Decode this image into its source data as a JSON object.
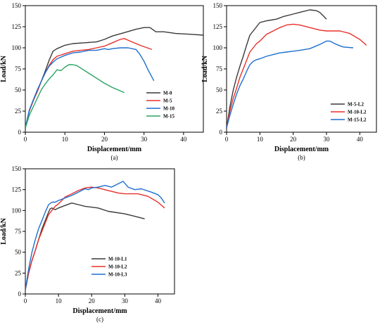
{
  "chart_data": [
    {
      "id": "a",
      "type": "line",
      "caption": "(a)",
      "xlabel": "Displacement/mm",
      "ylabel": "Load/kN",
      "xlim": [
        0,
        45
      ],
      "ylim": [
        0,
        150
      ],
      "xticks": [
        0,
        10,
        20,
        30,
        40
      ],
      "yticks": [
        0,
        25,
        50,
        75,
        100,
        125,
        150
      ],
      "legend_position": "bottom-right",
      "series": [
        {
          "name": "M-0",
          "color": "#3a3a3a",
          "x": [
            0,
            1,
            2,
            3,
            4,
            5,
            6,
            7,
            8,
            10,
            12,
            15,
            18,
            20,
            22,
            25,
            28,
            30,
            31.5,
            33,
            35,
            38,
            42,
            45
          ],
          "y": [
            5,
            25,
            38,
            48,
            60,
            72,
            85,
            96,
            99,
            103,
            105,
            106,
            107,
            110,
            114,
            118,
            122,
            124,
            124,
            119,
            119,
            117,
            116,
            115
          ]
        },
        {
          "name": "M-5",
          "color": "#e8302a",
          "x": [
            0,
            1,
            2,
            3,
            4,
            5,
            6,
            7,
            8,
            10,
            12,
            14,
            16,
            18,
            20,
            22,
            24,
            25,
            27,
            29,
            32
          ],
          "y": [
            5,
            25,
            37,
            48,
            60,
            70,
            79,
            86,
            90,
            93,
            96,
            97,
            98,
            100,
            102,
            106,
            110,
            111,
            107,
            103,
            98
          ]
        },
        {
          "name": "M-10",
          "color": "#1e6fd0",
          "x": [
            0,
            1,
            2,
            3,
            4,
            5,
            6,
            7,
            8,
            10,
            12,
            14,
            16,
            18,
            20,
            21,
            22,
            24,
            26,
            28,
            29,
            30,
            31,
            32.5
          ],
          "y": [
            5,
            26,
            38,
            50,
            60,
            70,
            78,
            83,
            87,
            91,
            94,
            95,
            97,
            97,
            99,
            98,
            99,
            100,
            100,
            98,
            92,
            84,
            74,
            61
          ]
        },
        {
          "name": "M-15",
          "color": "#2aa363",
          "x": [
            0,
            1,
            2,
            3,
            4,
            5,
            6,
            7,
            8,
            9,
            10,
            11,
            12,
            13,
            14,
            16,
            18,
            20,
            22,
            25
          ],
          "y": [
            5,
            20,
            30,
            40,
            50,
            57,
            63,
            68,
            74,
            73,
            77,
            80,
            80,
            79,
            76,
            70,
            64,
            58,
            53,
            47
          ]
        }
      ]
    },
    {
      "id": "b",
      "type": "line",
      "caption": "(b)",
      "xlabel": "Displacement/mm",
      "ylabel": "Load/kN",
      "xlim": [
        0,
        45
      ],
      "ylim": [
        0,
        150
      ],
      "xticks": [
        0,
        10,
        20,
        30,
        40
      ],
      "yticks": [
        0,
        25,
        50,
        75,
        100,
        125,
        150
      ],
      "legend_position": "bottom-left",
      "series": [
        {
          "name": "M-5-L2",
          "color": "#3a3a3a",
          "x": [
            0,
            1,
            2,
            3,
            4,
            5,
            6,
            7,
            8,
            9,
            10,
            12,
            15,
            17,
            20,
            22,
            25,
            27,
            28,
            29,
            30
          ],
          "y": [
            5,
            30,
            50,
            65,
            78,
            90,
            103,
            115,
            120,
            125,
            130,
            132,
            134,
            137,
            140,
            142,
            145,
            144,
            142,
            138,
            134
          ]
        },
        {
          "name": "M-10-L2",
          "color": "#e8302a",
          "x": [
            0,
            1,
            2,
            3,
            4,
            5,
            6,
            7,
            8,
            9,
            10,
            11,
            12,
            14,
            16,
            18,
            20,
            22,
            25,
            28,
            30,
            34,
            37,
            40,
            42
          ],
          "y": [
            5,
            25,
            40,
            52,
            65,
            75,
            85,
            95,
            100,
            105,
            108,
            112,
            116,
            120,
            124,
            127,
            128,
            127,
            124,
            121,
            120,
            120,
            117,
            110,
            103
          ]
        },
        {
          "name": "M-15-L2",
          "color": "#1e6fd0",
          "x": [
            0,
            1,
            2,
            3,
            4,
            5,
            6,
            7,
            8,
            9,
            10,
            12,
            14,
            16,
            18,
            20,
            22,
            25,
            28,
            30,
            31,
            33,
            35,
            38
          ],
          "y": [
            5,
            20,
            33,
            45,
            55,
            63,
            72,
            80,
            84,
            86,
            87,
            90,
            92,
            94,
            95,
            96,
            97,
            99,
            104,
            108,
            108,
            104,
            101,
            100
          ]
        }
      ]
    },
    {
      "id": "c",
      "type": "line",
      "caption": "(c)",
      "xlabel": "Displacement/mm",
      "ylabel": "Load/kN",
      "xlim": [
        0,
        45
      ],
      "ylim": [
        0,
        150
      ],
      "xticks": [
        0,
        10,
        20,
        30,
        40
      ],
      "yticks": [
        0,
        25,
        50,
        75,
        100,
        125,
        150
      ],
      "legend_position": "bottom-left",
      "series": [
        {
          "name": "M-10-L1",
          "color": "#3a3a3a",
          "x": [
            0,
            1,
            2,
            3,
            4,
            5,
            6,
            7,
            7.5,
            8,
            9,
            10,
            12,
            14,
            16,
            18,
            20,
            22,
            25,
            30,
            33,
            36
          ],
          "y": [
            5,
            25,
            40,
            52,
            65,
            78,
            88,
            98,
            102,
            103,
            101,
            103,
            106,
            109,
            107,
            105,
            104,
            103,
            99,
            96,
            93,
            90
          ]
        },
        {
          "name": "M-10-L2",
          "color": "#e8302a",
          "x": [
            0,
            1,
            2,
            3,
            4,
            5,
            6,
            7,
            8,
            9,
            10,
            11,
            12,
            14,
            16,
            18,
            20,
            22,
            25,
            28,
            30,
            34,
            37,
            40,
            42
          ],
          "y": [
            5,
            25,
            40,
            52,
            65,
            75,
            85,
            95,
            100,
            105,
            108,
            112,
            116,
            120,
            124,
            127,
            128,
            127,
            124,
            121,
            120,
            120,
            117,
            110,
            103
          ]
        },
        {
          "name": "M-10-L3",
          "color": "#1e6fd0",
          "x": [
            0,
            1,
            2,
            3,
            4,
            5,
            6,
            7,
            8,
            9,
            10,
            12,
            14,
            16,
            18,
            19,
            20,
            22,
            24,
            26,
            28,
            29.5,
            31,
            33,
            35,
            38,
            40,
            41,
            42
          ],
          "y": [
            5,
            30,
            50,
            65,
            78,
            88,
            98,
            107,
            110,
            110,
            112,
            115,
            118,
            122,
            126,
            125,
            127,
            128,
            130,
            128,
            132,
            135,
            128,
            125,
            126,
            122,
            119,
            115,
            109
          ]
        }
      ]
    }
  ]
}
